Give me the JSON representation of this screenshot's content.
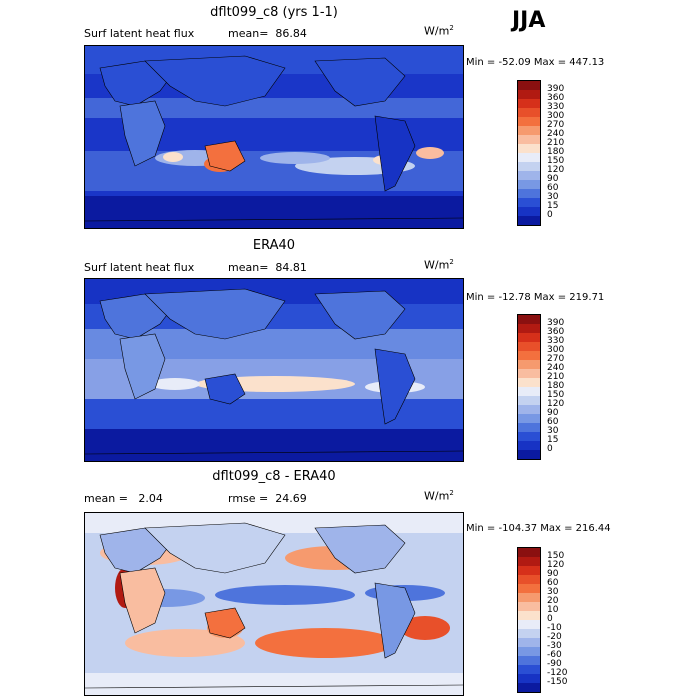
{
  "season": "JJA",
  "panels": [
    {
      "title": "dflt099_c8 (yrs 1-1)",
      "subtitle_left": "Surf latent heat flux",
      "subtitle_right": "mean=  86.84",
      "units": "W/m",
      "units_exp": "2",
      "minmax": "Min = -52.09 Max = 447.13",
      "colorbar_labels": [
        "390",
        "360",
        "330",
        "300",
        "270",
        "240",
        "210",
        "180",
        "150",
        "120",
        "90",
        "60",
        "30",
        "15",
        "0"
      ],
      "colorbar_colors": [
        "#8a1010",
        "#b11a12",
        "#d6301a",
        "#e8502a",
        "#f3703e",
        "#f69a6e",
        "#f9bda0",
        "#fbe1cc",
        "#e8ecf8",
        "#c4d2f0",
        "#9fb4ea",
        "#7898e4",
        "#4e74dc",
        "#2a4fd4",
        "#1733c4",
        "#0b1aa0"
      ]
    },
    {
      "title": "ERA40",
      "subtitle_left": "Surf latent heat flux",
      "subtitle_right": "mean=  84.81",
      "units": "W/m",
      "units_exp": "2",
      "minmax": "Min = -12.78 Max = 219.71",
      "colorbar_labels": [
        "390",
        "360",
        "330",
        "300",
        "270",
        "240",
        "210",
        "180",
        "150",
        "120",
        "90",
        "60",
        "30",
        "15",
        "0"
      ],
      "colorbar_colors": [
        "#8a1010",
        "#b11a12",
        "#d6301a",
        "#e8502a",
        "#f3703e",
        "#f69a6e",
        "#f9bda0",
        "#fbe1cc",
        "#e8ecf8",
        "#c4d2f0",
        "#9fb4ea",
        "#7898e4",
        "#4e74dc",
        "#2a4fd4",
        "#1733c4",
        "#0b1aa0"
      ]
    },
    {
      "title": "dflt099_c8 - ERA40",
      "subtitle_left": "mean =   2.04",
      "subtitle_right": "rmse =  24.69",
      "units": "W/m",
      "units_exp": "2",
      "minmax": "Min = -104.37 Max = 216.44",
      "colorbar_labels": [
        "150",
        "120",
        "90",
        "60",
        "30",
        "20",
        "10",
        "0",
        "-10",
        "-20",
        "-30",
        "-60",
        "-90",
        "-120",
        "-150"
      ],
      "colorbar_colors": [
        "#8a1010",
        "#b11a12",
        "#d6301a",
        "#e8502a",
        "#f3703e",
        "#f69a6e",
        "#f9bda0",
        "#fbe1cc",
        "#e8ecf8",
        "#c4d2f0",
        "#9fb4ea",
        "#7898e4",
        "#4e74dc",
        "#2a4fd4",
        "#1733c4",
        "#0b1aa0"
      ]
    }
  ]
}
